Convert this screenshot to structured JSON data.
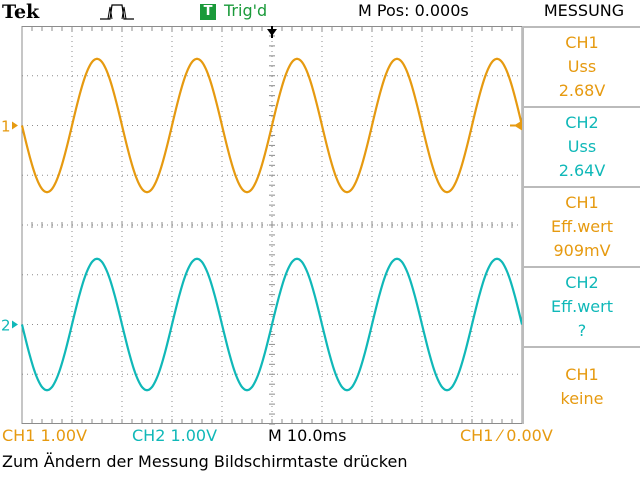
{
  "header": {
    "brand": "Tek",
    "acquisition_icon": "pulse-icon",
    "trigger_badge": "T",
    "trigger_status": "Trig'd",
    "m_pos": "M Pos: 0.000s",
    "menu_title": "MESSUNG"
  },
  "measurements": [
    {
      "source": "CH1",
      "type": "Uss",
      "value": "2.68V",
      "channel": "ch1"
    },
    {
      "source": "CH2",
      "type": "Uss",
      "value": "2.64V",
      "channel": "ch2"
    },
    {
      "source": "CH1",
      "type": "Eff.wert",
      "value": "909mV",
      "channel": "ch1"
    },
    {
      "source": "CH2",
      "type": "Eff.wert",
      "value": "?",
      "channel": "ch2"
    },
    {
      "source": "CH1",
      "type": "keine",
      "value": "",
      "channel": "ch1"
    }
  ],
  "markers": {
    "ch1": "1",
    "ch2": "2"
  },
  "status": {
    "ch1_scale": "CH1  1.00V",
    "ch2_scale": "CH2  1.00V",
    "timebase": "M 10.0ms",
    "trigger": "CH1 ⁄ 0.00V"
  },
  "hint": "Zum Ändern der Messung Bildschirmtaste drücken",
  "colors": {
    "ch1": "#e69a10",
    "ch2": "#10b8b8",
    "trigger": "#1a9a3a",
    "grid": "#8c8c8c"
  },
  "chart_data": {
    "type": "line",
    "x_unit": "s",
    "x_range": [
      -0.05,
      0.05
    ],
    "volts_per_division": 1.0,
    "series": [
      {
        "name": "CH1",
        "frequency_hz": 50,
        "amplitude_v": 1.34,
        "offset_v": 0,
        "phase_deg": 0
      },
      {
        "name": "CH2",
        "frequency_hz": 50,
        "amplitude_v": 1.32,
        "offset_v": 0,
        "phase_deg": 0
      }
    ]
  }
}
